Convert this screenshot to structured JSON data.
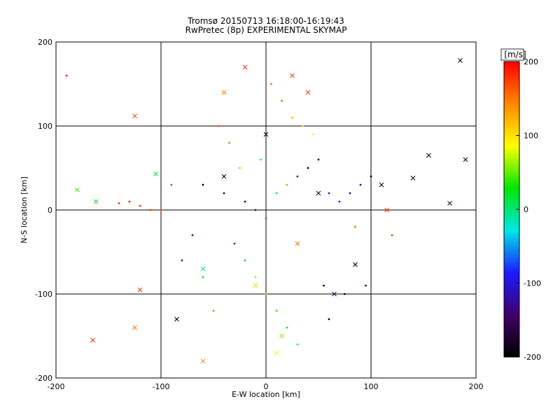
{
  "chart_data": {
    "type": "scatter",
    "title": "Tromsø 20150713 16:18:00-16:19:43",
    "subtitle": "RwPretec (8p) EXPERIMENTAL SKYMAP",
    "xlabel": "E-W location [km]",
    "ylabel": "N-S location [km]",
    "xlim": [
      -200,
      200
    ],
    "ylim": [
      -200,
      200
    ],
    "xticks": [
      -200,
      -100,
      0,
      100,
      200
    ],
    "yticks": [
      -200,
      -100,
      0,
      100,
      200
    ],
    "grid": true,
    "color_scale": {
      "label": "[m/s]",
      "min": -200,
      "max": 200,
      "ticks": [
        200,
        100,
        0,
        -100,
        -200
      ],
      "stops": [
        "#000000",
        "#40006a",
        "#1c1cff",
        "#00e6e6",
        "#00e600",
        "#ffff00",
        "#ff8800",
        "#ff0000"
      ]
    },
    "points_dot": [
      {
        "x": -190,
        "y": 160,
        "v": 190
      },
      {
        "x": -130,
        "y": 10,
        "v": 190
      },
      {
        "x": -120,
        "y": 5,
        "v": 185
      },
      {
        "x": -110,
        "y": 0,
        "v": 180
      },
      {
        "x": -100,
        "y": 0,
        "v": 170
      },
      {
        "x": -140,
        "y": 8,
        "v": 180
      },
      {
        "x": -60,
        "y": 30,
        "v": -190
      },
      {
        "x": -40,
        "y": 20,
        "v": -170
      },
      {
        "x": -20,
        "y": 10,
        "v": -180
      },
      {
        "x": -10,
        "y": 0,
        "v": -150
      },
      {
        "x": 0,
        "y": -10,
        "v": -60
      },
      {
        "x": 10,
        "y": 20,
        "v": 0
      },
      {
        "x": 20,
        "y": 30,
        "v": 50
      },
      {
        "x": 30,
        "y": 40,
        "v": -120
      },
      {
        "x": 40,
        "y": 50,
        "v": -200
      },
      {
        "x": 50,
        "y": 60,
        "v": -180
      },
      {
        "x": 60,
        "y": 20,
        "v": -110
      },
      {
        "x": 70,
        "y": 10,
        "v": -100
      },
      {
        "x": 80,
        "y": 20,
        "v": -130
      },
      {
        "x": 90,
        "y": 30,
        "v": -120
      },
      {
        "x": -30,
        "y": -40,
        "v": -80
      },
      {
        "x": -20,
        "y": -60,
        "v": -40
      },
      {
        "x": -10,
        "y": -80,
        "v": 60
      },
      {
        "x": 0,
        "y": -100,
        "v": 120
      },
      {
        "x": 10,
        "y": -120,
        "v": 40
      },
      {
        "x": 20,
        "y": -140,
        "v": 20
      },
      {
        "x": 30,
        "y": -160,
        "v": -20
      },
      {
        "x": 5,
        "y": 150,
        "v": 150
      },
      {
        "x": 15,
        "y": 130,
        "v": 160
      },
      {
        "x": 25,
        "y": 110,
        "v": 120
      },
      {
        "x": 35,
        "y": 100,
        "v": 110
      },
      {
        "x": 45,
        "y": 90,
        "v": 90
      },
      {
        "x": -45,
        "y": 100,
        "v": 170
      },
      {
        "x": -35,
        "y": 80,
        "v": 150
      },
      {
        "x": 55,
        "y": -90,
        "v": -190
      },
      {
        "x": 75,
        "y": -100,
        "v": -200
      },
      {
        "x": 95,
        "y": -90,
        "v": -170
      },
      {
        "x": -70,
        "y": -30,
        "v": -140
      },
      {
        "x": -80,
        "y": -60,
        "v": -110
      },
      {
        "x": -90,
        "y": 30,
        "v": -60
      },
      {
        "x": 100,
        "y": 40,
        "v": -200
      },
      {
        "x": 120,
        "y": -30,
        "v": 170
      },
      {
        "x": -60,
        "y": -80,
        "v": 30
      },
      {
        "x": -50,
        "y": -120,
        "v": 150
      },
      {
        "x": 60,
        "y": -130,
        "v": -190
      },
      {
        "x": 85,
        "y": -20,
        "v": 160
      },
      {
        "x": -25,
        "y": 50,
        "v": 60
      },
      {
        "x": -5,
        "y": 60,
        "v": -10
      }
    ],
    "points_cross": [
      {
        "x": 185,
        "y": 178,
        "v": -200
      },
      {
        "x": -125,
        "y": 112,
        "v": 170
      },
      {
        "x": -165,
        "y": -155,
        "v": 185
      },
      {
        "x": -180,
        "y": 24,
        "v": 40
      },
      {
        "x": -162,
        "y": 10,
        "v": 20
      },
      {
        "x": -105,
        "y": 43,
        "v": 10
      },
      {
        "x": -120,
        "y": -95,
        "v": 180
      },
      {
        "x": -125,
        "y": -140,
        "v": 150
      },
      {
        "x": -60,
        "y": -180,
        "v": 140
      },
      {
        "x": 140,
        "y": 38,
        "v": -200
      },
      {
        "x": 155,
        "y": 65,
        "v": -200
      },
      {
        "x": 175,
        "y": 8,
        "v": -180
      },
      {
        "x": 190,
        "y": 60,
        "v": -200
      },
      {
        "x": 115,
        "y": 0,
        "v": 180
      },
      {
        "x": 85,
        "y": -65,
        "v": -200
      },
      {
        "x": 65,
        "y": -100,
        "v": -150
      },
      {
        "x": 30,
        "y": -40,
        "v": 150
      },
      {
        "x": 50,
        "y": 20,
        "v": -200
      },
      {
        "x": 25,
        "y": 160,
        "v": 175
      },
      {
        "x": -20,
        "y": 170,
        "v": 180
      },
      {
        "x": 40,
        "y": 140,
        "v": 180
      },
      {
        "x": -40,
        "y": 40,
        "v": -200
      },
      {
        "x": 0,
        "y": 90,
        "v": -200
      },
      {
        "x": -10,
        "y": -90,
        "v": 110
      },
      {
        "x": 15,
        "y": -150,
        "v": 60
      },
      {
        "x": -85,
        "y": -130,
        "v": -200
      },
      {
        "x": 110,
        "y": 30,
        "v": -200
      },
      {
        "x": -60,
        "y": -70,
        "v": 0
      },
      {
        "x": 10,
        "y": -170,
        "v": 90
      },
      {
        "x": -40,
        "y": 140,
        "v": 150
      }
    ]
  }
}
